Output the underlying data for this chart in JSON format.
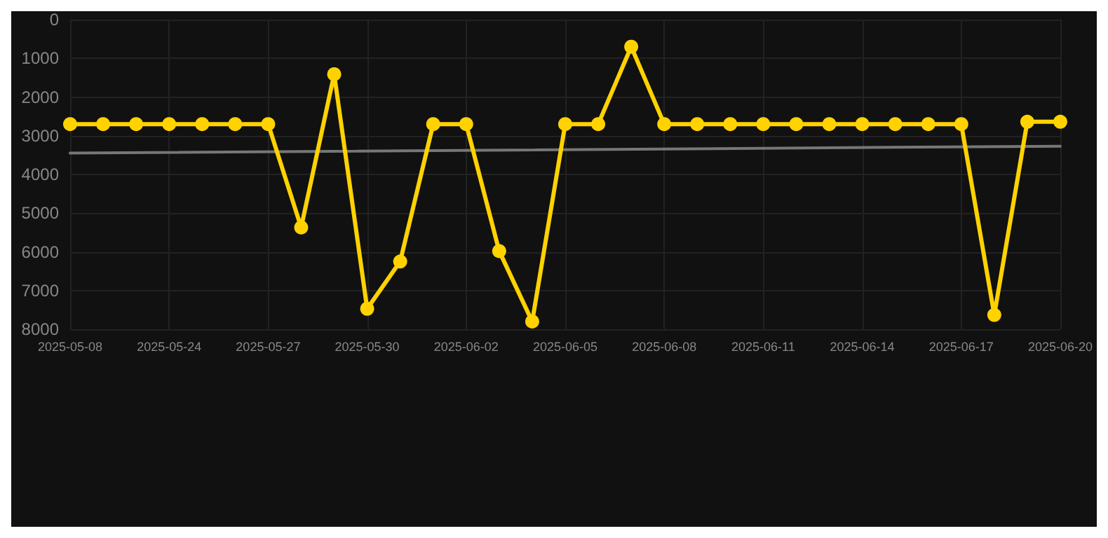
{
  "chart_data": {
    "type": "line",
    "categories": [
      "2025-05-08",
      null,
      null,
      "2025-05-24",
      null,
      null,
      "2025-05-27",
      null,
      null,
      "2025-05-30",
      null,
      null,
      "2025-06-02",
      null,
      null,
      "2025-06-05",
      null,
      null,
      "2025-06-08",
      null,
      null,
      "2025-06-11",
      null,
      null,
      "2025-06-14",
      null,
      null,
      "2025-06-17",
      null,
      null,
      "2025-06-20"
    ],
    "series": [
      {
        "color": "#ffd200",
        "marker": "circle",
        "values": [
          2700,
          2700,
          2700,
          2700,
          2700,
          2700,
          2700,
          5370,
          1410,
          7470,
          6250,
          2700,
          2700,
          5980,
          7800,
          2700,
          2700,
          700,
          2700,
          2700,
          2700,
          2700,
          2700,
          2700,
          2700,
          2700,
          2700,
          2700,
          7630,
          2640,
          2640
        ]
      },
      {
        "type": "line",
        "color": "#777777",
        "marker": "none",
        "values": [
          3450,
          null,
          null,
          null,
          null,
          null,
          null,
          null,
          null,
          null,
          null,
          null,
          null,
          null,
          null,
          null,
          null,
          null,
          null,
          null,
          null,
          null,
          null,
          null,
          null,
          null,
          null,
          null,
          null,
          null,
          3270
        ]
      }
    ],
    "ylim": [
      8000,
      0
    ],
    "yticks": [
      0,
      1000,
      2000,
      3000,
      4000,
      5000,
      6000,
      7000,
      8000
    ],
    "grid": true,
    "line_style": "solid"
  }
}
